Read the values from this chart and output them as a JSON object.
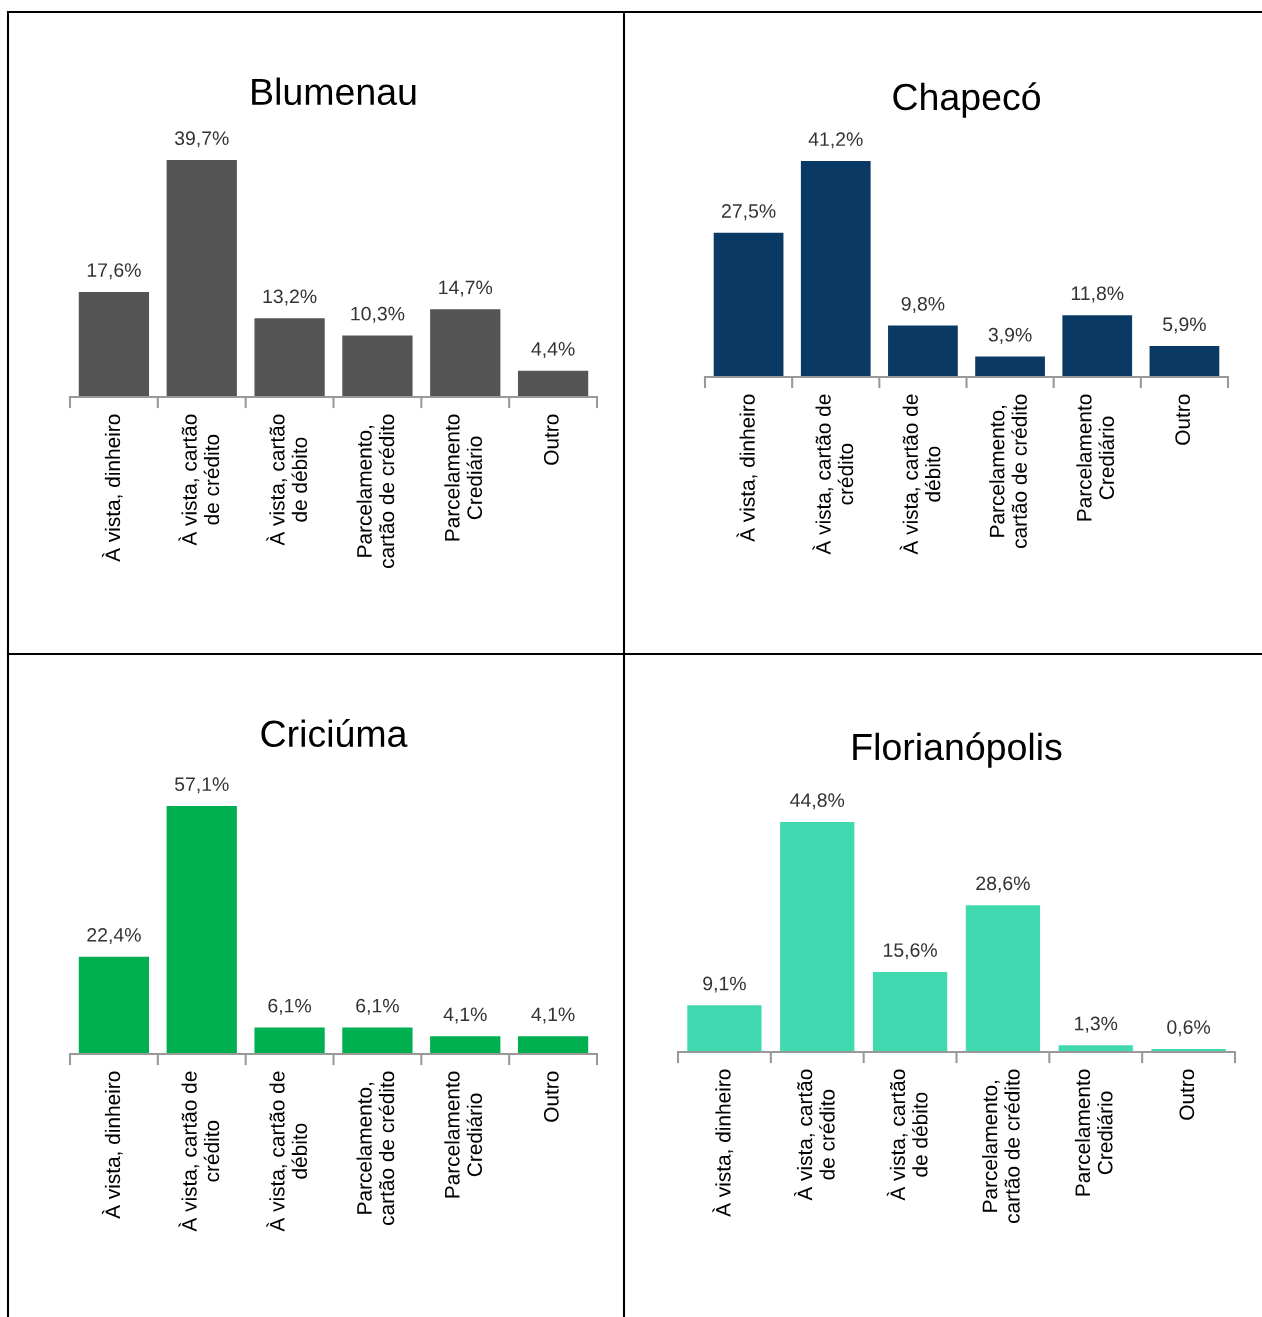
{
  "chart_data": [
    {
      "type": "bar",
      "title": "Blumenau",
      "categories": [
        "À vista, dinheiro",
        "À vista, cartão\nde crédito",
        "À vista, cartão\nde débito",
        "Parcelamento,\ncartão de crédito",
        "Parcelamento\nCrediário",
        "Outro"
      ],
      "values": [
        17.6,
        39.7,
        13.2,
        10.3,
        14.7,
        4.4
      ],
      "value_labels": [
        "17,6%",
        "39,7%",
        "13,2%",
        "10,3%",
        "14,7%",
        "4,4%"
      ],
      "color": "#555555"
    },
    {
      "type": "bar",
      "title": "Chapecó",
      "categories": [
        "À vista, dinheiro",
        "À vista, cartão de\ncrédito",
        "À vista, cartão de\ndébito",
        "Parcelamento,\ncartão de crédito",
        "Parcelamento\nCrediário",
        "Outro"
      ],
      "values": [
        27.5,
        41.2,
        9.8,
        3.9,
        11.8,
        5.9
      ],
      "value_labels": [
        "27,5%",
        "41,2%",
        "9,8%",
        "3,9%",
        "11,8%",
        "5,9%"
      ],
      "color": "#0a3a63"
    },
    {
      "type": "bar",
      "title": "Criciúma",
      "categories": [
        "À vista, dinheiro",
        "À vista, cartão de\ncrédito",
        "À vista, cartão de\ndébito",
        "Parcelamento,\ncartão de crédito",
        "Parcelamento\nCrediário",
        "Outro"
      ],
      "values": [
        22.4,
        57.1,
        6.1,
        6.1,
        4.1,
        4.1
      ],
      "value_labels": [
        "22,4%",
        "57,1%",
        "6,1%",
        "6,1%",
        "4,1%",
        "4,1%"
      ],
      "color": "#00b050"
    },
    {
      "type": "bar",
      "title": "Florianópolis",
      "categories": [
        "À vista, dinheiro",
        "À vista, cartão\nde crédito",
        "À vista, cartão\nde débito",
        "Parcelamento,\ncartão de crédito",
        "Parcelamento\nCrediário",
        "Outro"
      ],
      "values": [
        9.1,
        44.8,
        15.6,
        28.6,
        1.3,
        0.6
      ],
      "value_labels": [
        "9,1%",
        "44,8%",
        "15,6%",
        "28,6%",
        "1,3%",
        "0,6%"
      ],
      "color": "#40d9b0"
    }
  ]
}
